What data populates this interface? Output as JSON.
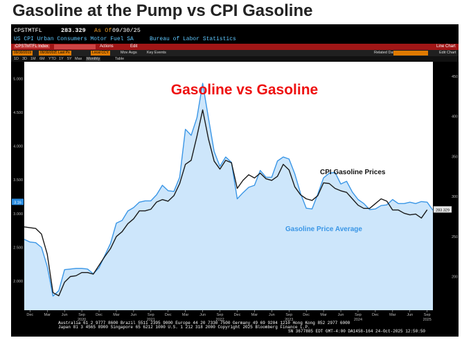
{
  "page_title": "Gasoline at the Pump vs CPI Gasoline",
  "terminal": {
    "ticker": "CPSTMTFL",
    "last_value": "283.329",
    "as_of_label": "As Of",
    "as_of_date": "09/30/25",
    "series_desc": "US CPI Urban Consumers Motor Fuel SA",
    "source": "Bureau of Labor Statistics",
    "ticker_index": "CPSTMTFL Index",
    "actions_label": "Actions",
    "edit_label": "Edit",
    "chart_type": "Line Chart",
    "date_start": "09/30/2019",
    "date_end": "09/30/2025",
    "last_px": "Last Px",
    "local_ccy": "Local CCY",
    "mov_avgs": "Mov Avgs",
    "key_events": "Key Events",
    "related_data": "Related Dat",
    "edit_chart": "Edit Chart",
    "range_buttons": [
      "1D",
      "3D",
      "1M",
      "6M",
      "YTD",
      "1Y",
      "5Y",
      "Max",
      "Monthly",
      "Table"
    ],
    "left_badge": "3.16",
    "right_badge": "283.329"
  },
  "footer": {
    "line1": "Australia 61 2 9777 8600 Brazil 5511 2395 9000 Europe 44 20 7330 7500 Germany 49 69 9204 1210 Hong Kong 852 2977 6000",
    "line2": "Japan 81 3 4565 8900        Singapore 65 6212 1000      U.S. 1 212 318 2000         Copyright 2025 Bloomberg Finance L.P.",
    "line3": "SN 3677885 EDT  GMT-4:00 DA1458-164 24-Oct-2025 12:50:50"
  },
  "chart_data": {
    "type": "line",
    "title": "Gasoline vs Gasoline",
    "colors": {
      "pump": "#3a96e6",
      "cpi": "#1a1a1a",
      "fill": "#cde6fb",
      "title": "#ee1111"
    },
    "annotations": [
      {
        "text": "CPI Gasoline Prices",
        "series": "cpi"
      },
      {
        "text": "Gasoline Price Average",
        "series": "pump"
      }
    ],
    "x_range": [
      "2019-11",
      "2025-10"
    ],
    "x_tick_labels": [
      {
        "label": "Dec",
        "year": ""
      },
      {
        "label": "Mar",
        "year": ""
      },
      {
        "label": "Jun",
        "year": ""
      },
      {
        "label": "Sep",
        "year": "2020"
      },
      {
        "label": "Dec",
        "year": ""
      },
      {
        "label": "Mar",
        "year": ""
      },
      {
        "label": "Jun",
        "year": ""
      },
      {
        "label": "Sep",
        "year": "2021"
      },
      {
        "label": "Dec",
        "year": ""
      },
      {
        "label": "Mar",
        "year": ""
      },
      {
        "label": "Jun",
        "year": ""
      },
      {
        "label": "Sep",
        "year": "2022"
      },
      {
        "label": "Dec",
        "year": ""
      },
      {
        "label": "Mar",
        "year": ""
      },
      {
        "label": "Jun",
        "year": ""
      },
      {
        "label": "Sep",
        "year": "2023"
      },
      {
        "label": "Dec",
        "year": ""
      },
      {
        "label": "Mar",
        "year": ""
      },
      {
        "label": "Jun",
        "year": ""
      },
      {
        "label": "Sep",
        "year": "2024"
      },
      {
        "label": "Dec",
        "year": ""
      },
      {
        "label": "Mar",
        "year": ""
      },
      {
        "label": "Jun",
        "year": ""
      },
      {
        "label": "Sep",
        "year": "2025"
      }
    ],
    "x_tick_dates": [
      "2019-12",
      "2020-03",
      "2020-06",
      "2020-09",
      "2020-12",
      "2021-03",
      "2021-06",
      "2021-09",
      "2021-12",
      "2022-03",
      "2022-06",
      "2022-09",
      "2022-12",
      "2023-03",
      "2023-06",
      "2023-09",
      "2023-12",
      "2024-03",
      "2024-06",
      "2024-09",
      "2024-12",
      "2025-03",
      "2025-06",
      "2025-09"
    ],
    "left_axis": {
      "ticks": [
        "5.000",
        "4.500",
        "4.000",
        "3.500",
        "3.000",
        "2.500",
        "2.000"
      ],
      "tick_values": [
        5.0,
        4.5,
        4.0,
        3.5,
        3.0,
        2.5,
        2.0
      ],
      "range": [
        1.57,
        5.25
      ]
    },
    "right_axis": {
      "ticks": [
        "450",
        "400",
        "350",
        "300",
        "250",
        "200"
      ],
      "tick_values": [
        450,
        400,
        350,
        300,
        250,
        200
      ],
      "range": [
        158,
        468
      ]
    },
    "series": [
      {
        "key": "pump",
        "axis": "left",
        "dates": [
          "2019-11",
          "2019-12",
          "2020-01",
          "2020-02",
          "2020-03",
          "2020-04",
          "2020-05",
          "2020-06",
          "2020-07",
          "2020-08",
          "2020-09",
          "2020-10",
          "2020-11",
          "2020-12",
          "2021-01",
          "2021-02",
          "2021-03",
          "2021-04",
          "2021-05",
          "2021-06",
          "2021-07",
          "2021-08",
          "2021-09",
          "2021-10",
          "2021-11",
          "2021-12",
          "2022-01",
          "2022-02",
          "2022-03",
          "2022-04",
          "2022-05",
          "2022-06",
          "2022-07",
          "2022-08",
          "2022-09",
          "2022-10",
          "2022-11",
          "2022-12",
          "2023-01",
          "2023-02",
          "2023-03",
          "2023-04",
          "2023-05",
          "2023-06",
          "2023-07",
          "2023-08",
          "2023-09",
          "2023-10",
          "2023-11",
          "2023-12",
          "2024-01",
          "2024-02",
          "2024-03",
          "2024-04",
          "2024-05",
          "2024-06",
          "2024-07",
          "2024-08",
          "2024-09",
          "2024-10",
          "2024-11",
          "2024-12",
          "2025-01",
          "2025-02",
          "2025-03",
          "2025-04",
          "2025-05",
          "2025-06",
          "2025-07",
          "2025-08",
          "2025-09",
          "2025-10"
        ],
        "values": [
          2.62,
          2.58,
          2.57,
          2.5,
          2.22,
          1.78,
          1.86,
          2.17,
          2.18,
          2.19,
          2.19,
          2.18,
          2.11,
          2.2,
          2.38,
          2.56,
          2.86,
          2.9,
          3.04,
          3.09,
          3.17,
          3.19,
          3.19,
          3.28,
          3.42,
          3.34,
          3.33,
          3.54,
          4.25,
          4.16,
          4.42,
          4.93,
          4.42,
          3.92,
          3.7,
          3.84,
          3.76,
          3.22,
          3.31,
          3.39,
          3.42,
          3.64,
          3.54,
          3.54,
          3.78,
          3.84,
          3.81,
          3.59,
          3.3,
          3.08,
          3.07,
          3.29,
          3.53,
          3.6,
          3.61,
          3.44,
          3.48,
          3.32,
          3.21,
          3.15,
          3.06,
          3.07,
          3.12,
          3.13,
          3.21,
          3.15,
          3.15,
          3.17,
          3.15,
          3.18,
          3.17,
          3.05
        ]
      },
      {
        "key": "cpi",
        "axis": "right",
        "dates": [
          "2019-11",
          "2019-12",
          "2020-01",
          "2020-02",
          "2020-03",
          "2020-04",
          "2020-05",
          "2020-06",
          "2020-07",
          "2020-08",
          "2020-09",
          "2020-10",
          "2020-11",
          "2020-12",
          "2021-01",
          "2021-02",
          "2021-03",
          "2021-04",
          "2021-05",
          "2021-06",
          "2021-07",
          "2021-08",
          "2021-09",
          "2021-10",
          "2021-11",
          "2021-12",
          "2022-01",
          "2022-02",
          "2022-03",
          "2022-04",
          "2022-05",
          "2022-06",
          "2022-07",
          "2022-08",
          "2022-09",
          "2022-10",
          "2022-11",
          "2022-12",
          "2023-01",
          "2023-02",
          "2023-03",
          "2023-04",
          "2023-05",
          "2023-06",
          "2023-07",
          "2023-08",
          "2023-09",
          "2023-10",
          "2023-11",
          "2023-12",
          "2024-01",
          "2024-02",
          "2024-03",
          "2024-04",
          "2024-05",
          "2024-06",
          "2024-07",
          "2024-08",
          "2024-09",
          "2024-10",
          "2024-11",
          "2024-12",
          "2025-01",
          "2025-02",
          "2025-03",
          "2025-04",
          "2025-05",
          "2025-06",
          "2025-07",
          "2025-08",
          "2025-09"
        ],
        "values": [
          262,
          261,
          260,
          253,
          228,
          180,
          176,
          193,
          200,
          201,
          205,
          205,
          203,
          214,
          225,
          235,
          250,
          256,
          266,
          272,
          282,
          282,
          284,
          293,
          296,
          294,
          301,
          316,
          340,
          345,
          375,
          408,
          372,
          344,
          334,
          345,
          342,
          310,
          320,
          327,
          323,
          329,
          322,
          320,
          325,
          340,
          333,
          312,
          302,
          297,
          295,
          301,
          317,
          316,
          310,
          307,
          305,
          297,
          289,
          285,
          285,
          291,
          297,
          294,
          283,
          283,
          279,
          277,
          278,
          273,
          283.3
        ]
      }
    ]
  }
}
